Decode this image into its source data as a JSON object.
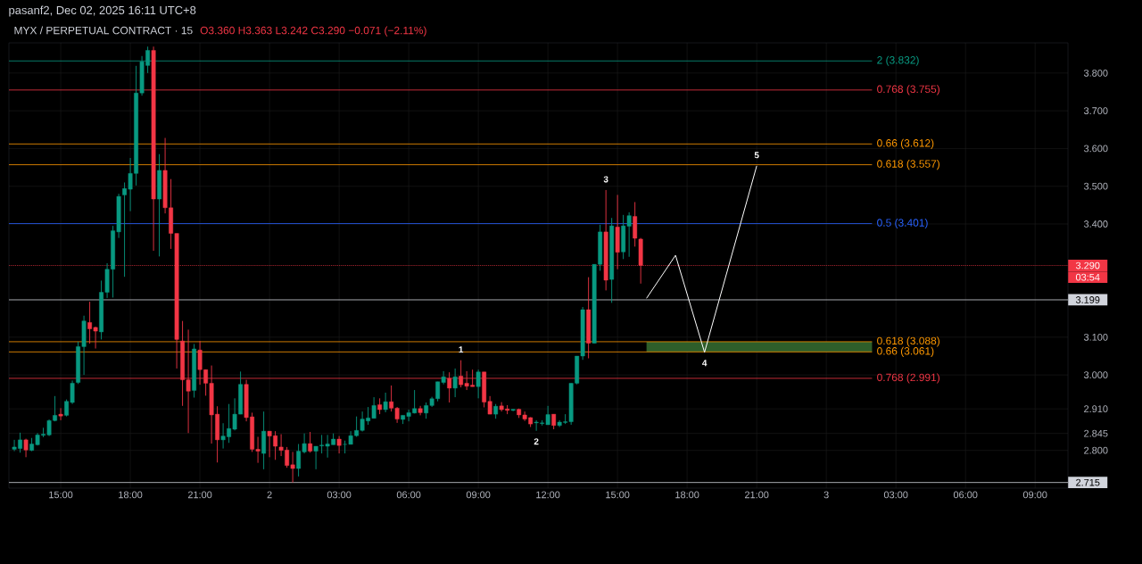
{
  "chart_data": {
    "type": "candlestick",
    "title": "MYX / PERPETUAL CONTRACT · 15",
    "subtitle": "O3.360 H3.363 L3.242 C3.290 −0.071 (−2.11%)",
    "x": [
      "2025-12-01T13:00",
      "2025-12-01T13:15",
      "2025-12-01T13:30",
      "2025-12-01T13:45",
      "2025-12-01T14:00",
      "2025-12-01T14:15",
      "2025-12-01T14:30",
      "2025-12-01T14:45",
      "2025-12-01T15:00",
      "2025-12-01T15:15",
      "2025-12-01T15:30",
      "2025-12-01T15:45",
      "2025-12-01T16:00",
      "2025-12-01T16:15",
      "2025-12-01T16:30",
      "2025-12-01T16:45",
      "2025-12-01T17:00",
      "2025-12-01T17:15",
      "2025-12-01T17:30",
      "2025-12-01T17:45",
      "2025-12-01T18:00",
      "2025-12-01T18:15",
      "2025-12-01T18:30",
      "2025-12-01T18:45",
      "2025-12-01T19:00",
      "2025-12-01T19:15",
      "2025-12-01T19:30",
      "2025-12-01T19:45",
      "2025-12-01T20:00",
      "2025-12-01T20:15",
      "2025-12-01T20:30",
      "2025-12-01T20:45",
      "2025-12-01T21:00",
      "2025-12-01T21:15",
      "2025-12-01T21:30",
      "2025-12-01T21:45",
      "2025-12-01T22:00",
      "2025-12-01T22:15",
      "2025-12-01T22:30",
      "2025-12-01T22:45",
      "2025-12-01T23:00",
      "2025-12-01T23:15",
      "2025-12-01T23:30",
      "2025-12-01T23:45",
      "2025-12-02T00:00",
      "2025-12-02T00:15",
      "2025-12-02T00:30",
      "2025-12-02T00:45",
      "2025-12-02T01:00",
      "2025-12-02T01:15",
      "2025-12-02T01:30",
      "2025-12-02T01:45",
      "2025-12-02T02:00",
      "2025-12-02T02:15",
      "2025-12-02T02:30",
      "2025-12-02T02:45",
      "2025-12-02T03:00",
      "2025-12-02T03:15",
      "2025-12-02T03:30",
      "2025-12-02T03:45",
      "2025-12-02T04:00",
      "2025-12-02T04:15",
      "2025-12-02T04:30",
      "2025-12-02T04:45",
      "2025-12-02T05:00",
      "2025-12-02T05:15",
      "2025-12-02T05:30",
      "2025-12-02T05:45",
      "2025-12-02T06:00",
      "2025-12-02T06:15",
      "2025-12-02T06:30",
      "2025-12-02T06:45",
      "2025-12-02T07:00",
      "2025-12-02T07:15",
      "2025-12-02T07:30",
      "2025-12-02T07:45",
      "2025-12-02T08:00",
      "2025-12-02T08:15",
      "2025-12-02T08:30",
      "2025-12-02T08:45",
      "2025-12-02T09:00",
      "2025-12-02T09:15",
      "2025-12-02T09:30",
      "2025-12-02T09:45",
      "2025-12-02T10:00",
      "2025-12-02T10:15",
      "2025-12-02T10:30",
      "2025-12-02T10:45",
      "2025-12-02T11:00",
      "2025-12-02T11:15",
      "2025-12-02T11:30",
      "2025-12-02T11:45",
      "2025-12-02T12:00",
      "2025-12-02T12:15",
      "2025-12-02T12:30",
      "2025-12-02T12:45",
      "2025-12-02T13:00",
      "2025-12-02T13:15",
      "2025-12-02T13:30",
      "2025-12-02T13:45",
      "2025-12-02T14:00",
      "2025-12-02T14:15",
      "2025-12-02T14:30",
      "2025-12-02T14:45",
      "2025-12-02T15:00",
      "2025-12-02T15:15",
      "2025-12-02T15:30",
      "2025-12-02T15:45",
      "2025-12-02T16:00"
    ],
    "ohlc": [
      [
        2.803,
        2.828,
        2.798,
        2.809
      ],
      [
        2.805,
        2.847,
        2.794,
        2.828
      ],
      [
        2.828,
        2.831,
        2.782,
        2.801
      ],
      [
        2.8,
        2.833,
        2.798,
        2.817
      ],
      [
        2.815,
        2.846,
        2.813,
        2.841
      ],
      [
        2.84,
        2.86,
        2.835,
        2.843
      ],
      [
        2.841,
        2.882,
        2.838,
        2.879
      ],
      [
        2.879,
        2.944,
        2.877,
        2.893
      ],
      [
        2.896,
        2.912,
        2.88,
        2.891
      ],
      [
        2.893,
        2.935,
        2.89,
        2.93
      ],
      [
        2.927,
        2.985,
        2.923,
        2.978
      ],
      [
        2.98,
        3.088,
        2.976,
        3.075
      ],
      [
        3.075,
        3.157,
        3.0,
        3.143
      ],
      [
        3.139,
        3.194,
        3.083,
        3.122
      ],
      [
        3.126,
        3.128,
        3.07,
        3.116
      ],
      [
        3.114,
        3.25,
        3.094,
        3.219
      ],
      [
        3.219,
        3.296,
        3.204,
        3.28
      ],
      [
        3.28,
        3.395,
        3.205,
        3.382
      ],
      [
        3.379,
        3.48,
        3.363,
        3.473
      ],
      [
        3.477,
        3.51,
        3.26,
        3.494
      ],
      [
        3.492,
        3.575,
        3.434,
        3.534
      ],
      [
        3.534,
        3.819,
        3.502,
        3.747
      ],
      [
        3.747,
        3.845,
        3.74,
        3.83
      ],
      [
        3.82,
        3.87,
        3.8,
        3.86
      ],
      [
        3.86,
        3.87,
        3.329,
        3.466
      ],
      [
        3.466,
        3.585,
        3.314,
        3.542
      ],
      [
        3.542,
        3.628,
        3.428,
        3.443
      ],
      [
        3.443,
        3.519,
        3.334,
        3.375
      ],
      [
        3.375,
        3.375,
        3.017,
        3.094
      ],
      [
        3.09,
        3.143,
        2.918,
        2.987
      ],
      [
        2.987,
        3.12,
        2.846,
        2.957
      ],
      [
        2.959,
        3.082,
        2.94,
        3.069
      ],
      [
        3.066,
        3.09,
        2.974,
        3.014
      ],
      [
        3.014,
        3.014,
        2.945,
        2.978
      ],
      [
        2.978,
        3.025,
        2.818,
        2.894
      ],
      [
        2.896,
        2.917,
        2.768,
        2.828
      ],
      [
        2.828,
        2.872,
        2.805,
        2.838
      ],
      [
        2.836,
        2.923,
        2.82,
        2.858
      ],
      [
        2.856,
        2.938,
        2.853,
        2.896
      ],
      [
        2.896,
        3.009,
        2.896,
        2.975
      ],
      [
        2.975,
        2.987,
        2.877,
        2.887
      ],
      [
        2.889,
        2.9,
        2.796,
        2.803
      ],
      [
        2.803,
        2.836,
        2.767,
        2.798
      ],
      [
        2.792,
        2.903,
        2.75,
        2.851
      ],
      [
        2.851,
        2.851,
        2.782,
        2.838
      ],
      [
        2.839,
        2.851,
        2.775,
        2.811
      ],
      [
        2.809,
        2.843,
        2.785,
        2.8
      ],
      [
        2.801,
        2.809,
        2.754,
        2.76
      ],
      [
        2.762,
        2.796,
        2.715,
        2.752
      ],
      [
        2.752,
        2.817,
        2.731,
        2.798
      ],
      [
        2.796,
        2.845,
        2.792,
        2.818
      ],
      [
        2.818,
        2.849,
        2.794,
        2.798
      ],
      [
        2.798,
        2.811,
        2.75,
        2.811
      ],
      [
        2.812,
        2.841,
        2.792,
        2.814
      ],
      [
        2.811,
        2.841,
        2.781,
        2.817
      ],
      [
        2.815,
        2.845,
        2.815,
        2.83
      ],
      [
        2.83,
        2.838,
        2.792,
        2.813
      ],
      [
        2.816,
        2.826,
        2.792,
        2.816
      ],
      [
        2.816,
        2.851,
        2.816,
        2.839
      ],
      [
        2.839,
        2.89,
        2.836,
        2.853
      ],
      [
        2.853,
        2.903,
        2.85,
        2.883
      ],
      [
        2.878,
        2.915,
        2.868,
        2.886
      ],
      [
        2.885,
        2.941,
        2.885,
        2.919
      ],
      [
        2.921,
        2.938,
        2.896,
        2.908
      ],
      [
        2.908,
        2.953,
        2.901,
        2.929
      ],
      [
        2.929,
        2.972,
        2.903,
        2.912
      ],
      [
        2.912,
        2.915,
        2.873,
        2.883
      ],
      [
        2.882,
        2.893,
        2.87,
        2.893
      ],
      [
        2.89,
        2.908,
        2.877,
        2.9
      ],
      [
        2.899,
        2.96,
        2.898,
        2.911
      ],
      [
        2.911,
        2.918,
        2.893,
        2.9
      ],
      [
        2.899,
        2.927,
        2.884,
        2.919
      ],
      [
        2.919,
        2.942,
        2.915,
        2.937
      ],
      [
        2.937,
        2.982,
        2.93,
        2.982
      ],
      [
        2.98,
        3.01,
        2.975,
        2.995
      ],
      [
        2.991,
        3.007,
        2.927,
        2.965
      ],
      [
        2.965,
        3.017,
        2.941,
        2.995
      ],
      [
        2.997,
        3.039,
        2.967,
        2.974
      ],
      [
        2.978,
        3.01,
        2.96,
        2.97
      ],
      [
        2.973,
        3.014,
        2.969,
        2.969
      ],
      [
        2.969,
        3.014,
        2.938,
        3.008
      ],
      [
        3.008,
        3.008,
        2.914,
        2.928
      ],
      [
        2.93,
        2.944,
        2.896,
        2.896
      ],
      [
        2.896,
        2.923,
        2.884,
        2.917
      ],
      [
        2.918,
        2.928,
        2.903,
        2.908
      ],
      [
        2.91,
        2.92,
        2.896,
        2.906
      ],
      [
        2.906,
        2.909,
        2.904,
        2.909
      ],
      [
        2.909,
        2.911,
        2.886,
        2.894
      ],
      [
        2.894,
        2.903,
        2.878,
        2.883
      ],
      [
        2.887,
        2.888,
        2.862,
        2.87
      ],
      [
        2.873,
        2.88,
        2.852,
        2.875
      ],
      [
        2.871,
        2.88,
        2.866,
        2.873
      ],
      [
        2.868,
        2.918,
        2.868,
        2.895
      ],
      [
        2.896,
        2.896,
        2.856,
        2.866
      ],
      [
        2.866,
        2.88,
        2.862,
        2.875
      ],
      [
        2.874,
        2.896,
        2.87,
        2.876
      ],
      [
        2.876,
        2.978,
        2.868,
        2.978
      ],
      [
        2.978,
        3.05,
        2.975,
        3.05
      ],
      [
        3.05,
        3.18,
        3.04,
        3.173
      ],
      [
        3.173,
        3.259,
        3.044,
        3.084
      ],
      [
        3.084,
        3.293,
        3.084,
        3.293
      ],
      [
        3.293,
        3.398,
        3.276,
        3.379
      ],
      [
        3.379,
        3.49,
        3.224,
        3.251
      ],
      [
        3.253,
        3.416,
        3.191,
        3.395
      ],
      [
        3.392,
        3.477,
        3.28,
        3.325
      ],
      [
        3.326,
        3.424,
        3.307,
        3.395
      ],
      [
        3.394,
        3.431,
        3.313,
        3.422
      ],
      [
        3.42,
        3.458,
        3.34,
        3.362
      ],
      [
        3.36,
        3.363,
        3.242,
        3.29
      ]
    ],
    "series": [
      {
        "type": "line",
        "color": "#ffffff",
        "x": [
          "2025-12-02T16:15",
          "2025-12-02T17:30",
          "2025-12-02T18:45",
          "2025-12-02T21:00"
        ],
        "values": [
          3.203,
          3.317,
          3.06,
          3.554
        ]
      }
    ],
    "xlim": [
      "2025-12-01T12:46",
      "2025-12-03T10:25"
    ],
    "ylim": [
      2.7,
      3.88
    ],
    "xticks": [
      {
        "value": "2025-12-01T15:00",
        "label": "15:00"
      },
      {
        "value": "2025-12-01T18:00",
        "label": "18:00"
      },
      {
        "value": "2025-12-01T21:00",
        "label": "21:00"
      },
      {
        "value": "2025-12-02T00:00",
        "label": "2"
      },
      {
        "value": "2025-12-02T03:00",
        "label": "03:00"
      },
      {
        "value": "2025-12-02T06:00",
        "label": "06:00"
      },
      {
        "value": "2025-12-02T09:00",
        "label": "09:00"
      },
      {
        "value": "2025-12-02T12:00",
        "label": "12:00"
      },
      {
        "value": "2025-12-02T15:00",
        "label": "15:00"
      },
      {
        "value": "2025-12-02T18:00",
        "label": "18:00"
      },
      {
        "value": "2025-12-02T21:00",
        "label": "21:00"
      },
      {
        "value": "2025-12-03T00:00",
        "label": "3"
      },
      {
        "value": "2025-12-03T03:00",
        "label": "03:00"
      },
      {
        "value": "2025-12-03T06:00",
        "label": "06:00"
      },
      {
        "value": "2025-12-03T09:00",
        "label": "09:00"
      }
    ],
    "yticks": [
      {
        "value": 2.8,
        "label": "2.800"
      },
      {
        "value": 2.845,
        "label": "2.845"
      },
      {
        "value": 2.91,
        "label": "2.910"
      },
      {
        "value": 3.0,
        "label": "3.000"
      },
      {
        "value": 3.1,
        "label": "3.100"
      },
      {
        "value": 3.4,
        "label": "3.400"
      },
      {
        "value": 3.5,
        "label": "3.500"
      },
      {
        "value": 3.6,
        "label": "3.600"
      },
      {
        "value": 3.7,
        "label": "3.700"
      },
      {
        "value": 3.8,
        "label": "3.800"
      }
    ],
    "grid": true,
    "ref_lines": [
      {
        "axis": "y",
        "value": 3.832,
        "label": "2 (3.832)",
        "color": "#089981"
      },
      {
        "axis": "y",
        "value": 3.755,
        "label": "0.768 (3.755)",
        "color": "#f23645"
      },
      {
        "axis": "y",
        "value": 3.612,
        "label": "0.66 (3.612)",
        "color": "#ff9800"
      },
      {
        "axis": "y",
        "value": 3.557,
        "label": "0.618 (3.557)",
        "color": "#ff9800"
      },
      {
        "axis": "y",
        "value": 3.401,
        "label": "0.5 (3.401)",
        "color": "#2962ff"
      },
      {
        "axis": "y",
        "value": 3.088,
        "label": "0.618 (3.088)",
        "color": "#ff9800"
      },
      {
        "axis": "y",
        "value": 3.061,
        "label": "0.66 (3.061)",
        "color": "#ff9800"
      },
      {
        "axis": "y",
        "value": 2.991,
        "label": "0.768 (2.991)",
        "color": "#f23645"
      },
      {
        "axis": "y",
        "value": 3.29,
        "label": "3.290",
        "color": "#f23645",
        "line_style": "dotted"
      },
      {
        "axis": "y",
        "value": 3.199,
        "label": "3.199",
        "color": "#d1d4dc",
        "line_style": "solid"
      },
      {
        "axis": "y",
        "value": 2.715,
        "label": "2.715",
        "color": "#d1d4dc",
        "line_style": "solid"
      }
    ],
    "bands": [
      {
        "axis": "y",
        "from": 3.061,
        "to": 3.088,
        "color": "#2e5e2a"
      }
    ],
    "annotations": [
      "pasanf2, Dec 02, 2025 16:11 UTC+8",
      "03:54",
      {
        "text": "1",
        "x": "2025-12-02T08:15",
        "y": 3.039
      },
      {
        "text": "2",
        "x": "2025-12-02T11:30",
        "y": 2.852
      },
      {
        "text": "3",
        "x": "2025-12-02T14:30",
        "y": 3.49
      },
      {
        "text": "4",
        "x": "2025-12-02T18:45",
        "y": 3.06
      },
      {
        "text": "5",
        "x": "2025-12-02T21:00",
        "y": 3.554
      }
    ]
  }
}
